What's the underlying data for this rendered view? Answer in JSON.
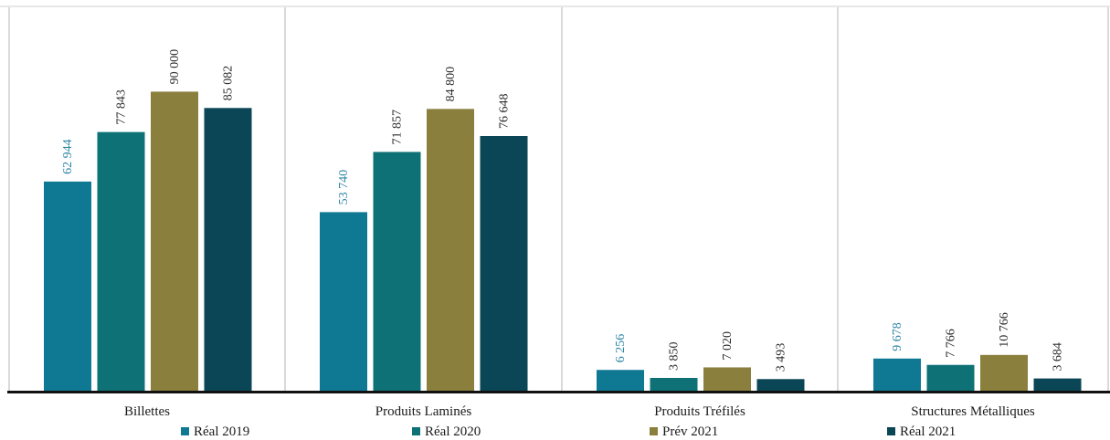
{
  "chart_data": {
    "type": "bar",
    "title": "",
    "xlabel": "",
    "ylabel": "",
    "ylim": [
      0,
      100000
    ],
    "grid": false,
    "legend_position": "bottom",
    "categories": [
      "Billettes",
      "Produits Laminés",
      "Produits Tréfilés",
      "Structures Métalliques"
    ],
    "series": [
      {
        "name": "Réal 2019",
        "color": "#0F7893",
        "label_color": "#2E86A6",
        "values": [
          62944,
          53740,
          6256,
          9678
        ],
        "labels": [
          "62 944",
          "53 740",
          "6 256",
          "9 678"
        ]
      },
      {
        "name": "Réal 2020",
        "color": "#0E7175",
        "label_color": "#2B2B2B",
        "values": [
          77843,
          71857,
          3850,
          7766
        ],
        "labels": [
          "77 843",
          "71 857",
          "3 850",
          "7 766"
        ]
      },
      {
        "name": "Prév 2021",
        "color": "#8B7F3E",
        "label_color": "#2B2B2B",
        "values": [
          90000,
          84800,
          7020,
          10766
        ],
        "labels": [
          "90 000",
          "84 800",
          "7 020",
          "10 766"
        ]
      },
      {
        "name": "Réal 2021",
        "color": "#0A4656",
        "label_color": "#2B2B2B",
        "values": [
          85082,
          76648,
          3493,
          3684
        ],
        "labels": [
          "85 082",
          "76 648",
          "3 493",
          "3 684"
        ]
      }
    ]
  }
}
